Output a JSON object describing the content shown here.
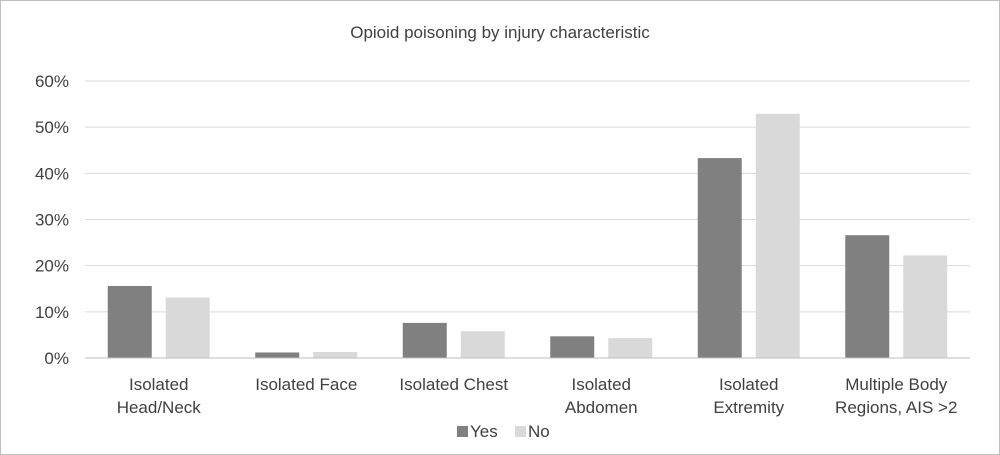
{
  "chart_data": {
    "type": "bar",
    "title": "Opioid poisoning by injury characteristic",
    "xlabel": "",
    "ylabel": "",
    "categories": [
      [
        "Isolated",
        "Head/Neck"
      ],
      [
        "Isolated Face"
      ],
      [
        "Isolated Chest"
      ],
      [
        "Isolated",
        "Abdomen"
      ],
      [
        "Isolated",
        "Extremity"
      ],
      [
        "Multiple Body",
        "Regions, AIS >2"
      ]
    ],
    "series": [
      {
        "name": "Yes",
        "color": "#808080",
        "values": [
          15.6,
          1.2,
          7.6,
          4.7,
          43.3,
          26.6
        ]
      },
      {
        "name": "No",
        "color": "#d9d9d9",
        "values": [
          13.1,
          1.3,
          5.8,
          4.3,
          52.9,
          22.2
        ]
      }
    ],
    "ylim": [
      0,
      60
    ],
    "yticks": [
      0,
      10,
      20,
      30,
      40,
      50,
      60
    ],
    "ytick_labels": [
      "0%",
      "10%",
      "20%",
      "30%",
      "40%",
      "50%",
      "60%"
    ],
    "grid": true,
    "legend": "bottom"
  }
}
